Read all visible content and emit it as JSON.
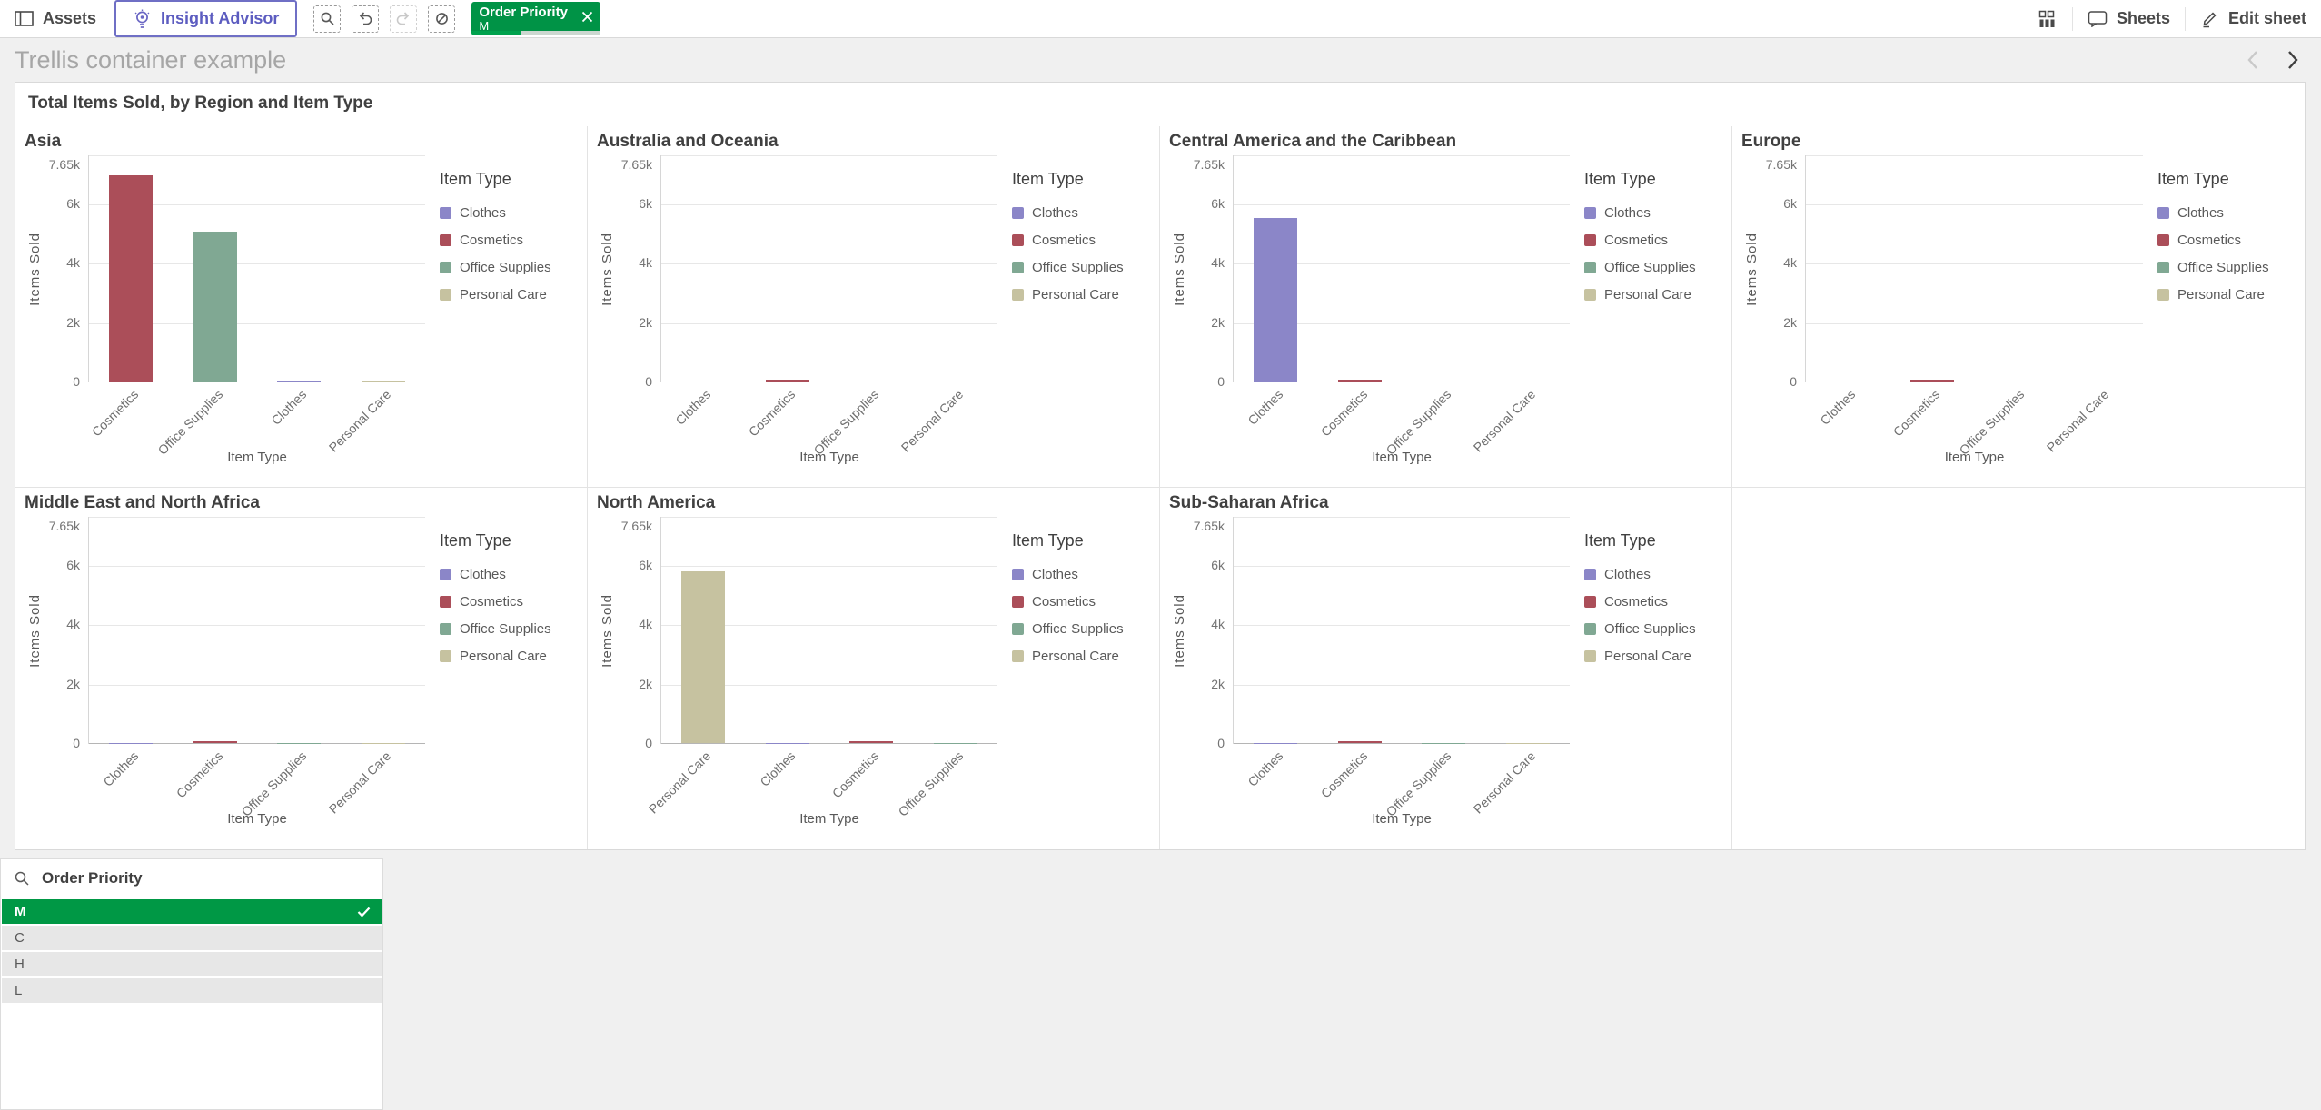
{
  "toolbar": {
    "assets_label": "Assets",
    "insight_advisor_label": "Insight Advisor",
    "selection_chip": {
      "field": "Order Priority",
      "value": "M",
      "progress_pct": 38
    },
    "sheets_label": "Sheets",
    "edit_sheet_label": "Edit sheet",
    "icons": [
      "panel-left-icon",
      "lightbulb-icon",
      "search-selections-icon",
      "step-back-icon",
      "step-forward-icon",
      "clear-selections-icon",
      "app-objects-icon",
      "sheet-icon",
      "pencil-icon"
    ]
  },
  "sheet": {
    "title": "Trellis container example"
  },
  "container": {
    "title": "Total Items Sold, by Region and Item Type"
  },
  "axis": {
    "ylabel": "Items Sold",
    "xlabel": "Item Type",
    "y_max": 7650,
    "y_ticks": [
      "7.65k",
      "6k",
      "4k",
      "2k",
      "0"
    ],
    "y_tick_values": [
      7650,
      6000,
      4000,
      2000,
      0
    ],
    "y_gridlines": [
      7650,
      6000,
      4000,
      2000
    ]
  },
  "legend": {
    "title": "Item Type",
    "items": [
      "Clothes",
      "Cosmetics",
      "Office Supplies",
      "Personal Care"
    ]
  },
  "colors": {
    "Clothes": "#8b86c8",
    "Cosmetics": "#ab4e59",
    "Office Supplies": "#80a893",
    "Personal Care": "#c6c2a0"
  },
  "selection_colors": {
    "selected_green": "#009845",
    "chip_green": "#009346",
    "progress_fill": "#00a24d"
  },
  "chart_data": [
    {
      "type": "bar",
      "title": "Asia",
      "categories": [
        "Cosmetics",
        "Office Supplies",
        "Clothes",
        "Personal Care"
      ],
      "values": [
        6950,
        5050,
        40,
        40
      ],
      "xlabel": "Item Type",
      "ylabel": "Items Sold",
      "ylim": [
        0,
        7650
      ]
    },
    {
      "type": "bar",
      "title": "Australia and Oceania",
      "categories": [
        "Clothes",
        "Cosmetics",
        "Office Supplies",
        "Personal Care"
      ],
      "values": [
        15,
        50,
        15,
        15
      ],
      "xlabel": "Item Type",
      "ylabel": "Items Sold",
      "ylim": [
        0,
        7650
      ]
    },
    {
      "type": "bar",
      "title": "Central America and the Caribbean",
      "categories": [
        "Clothes",
        "Cosmetics",
        "Office Supplies",
        "Personal Care"
      ],
      "values": [
        5520,
        50,
        15,
        15
      ],
      "xlabel": "Item Type",
      "ylabel": "Items Sold",
      "ylim": [
        0,
        7650
      ]
    },
    {
      "type": "bar",
      "title": "Europe",
      "categories": [
        "Clothes",
        "Cosmetics",
        "Office Supplies",
        "Personal Care"
      ],
      "values": [
        15,
        50,
        15,
        15
      ],
      "xlabel": "Item Type",
      "ylabel": "Items Sold",
      "ylim": [
        0,
        7650
      ]
    },
    {
      "type": "bar",
      "title": "Middle East and North Africa",
      "categories": [
        "Clothes",
        "Cosmetics",
        "Office Supplies",
        "Personal Care"
      ],
      "values": [
        15,
        50,
        15,
        15
      ],
      "xlabel": "Item Type",
      "ylabel": "Items Sold",
      "ylim": [
        0,
        7650
      ]
    },
    {
      "type": "bar",
      "title": "North America",
      "categories": [
        "Personal Care",
        "Clothes",
        "Cosmetics",
        "Office Supplies"
      ],
      "values": [
        5770,
        15,
        50,
        15
      ],
      "xlabel": "Item Type",
      "ylabel": "Items Sold",
      "ylim": [
        0,
        7650
      ]
    },
    {
      "type": "bar",
      "title": "Sub-Saharan Africa",
      "categories": [
        "Clothes",
        "Cosmetics",
        "Office Supplies",
        "Personal Care"
      ],
      "values": [
        15,
        50,
        15,
        15
      ],
      "xlabel": "Item Type",
      "ylabel": "Items Sold",
      "ylim": [
        0,
        7650
      ]
    }
  ],
  "listbox": {
    "title": "Order Priority",
    "items": [
      {
        "label": "M",
        "state": "selected"
      },
      {
        "label": "C",
        "state": "excluded"
      },
      {
        "label": "H",
        "state": "excluded"
      },
      {
        "label": "L",
        "state": "excluded"
      }
    ]
  },
  "navigation": {
    "prev_enabled": false,
    "next_enabled": true
  }
}
